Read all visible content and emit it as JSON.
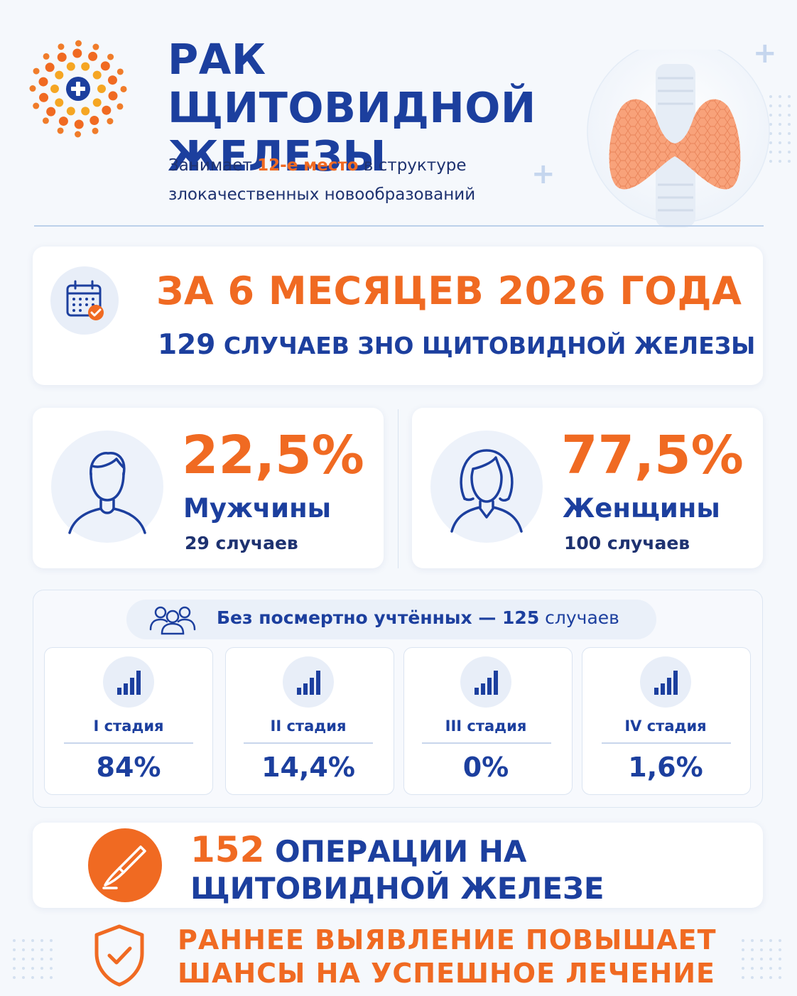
{
  "header": {
    "title_line1": "РАК ЩИТОВИДНОЙ",
    "title_line2": "ЖЕЛЕЗЫ",
    "subtitle_prefix": "Занимает ",
    "subtitle_accent": "12-е место",
    "subtitle_suffix": " в структуре",
    "subtitle_line2": "злокачественных новообразований"
  },
  "period": {
    "title": "ЗА 6 МЕСЯЦЕВ 2026 ГОДА",
    "cases_number": "129",
    "cases_text": " СЛУЧАЕВ ЗНО ЩИТОВИДНОЙ ЖЕЛЕЗЫ",
    "icon": "calendar-check-icon"
  },
  "gender": {
    "men": {
      "percent": "22,5%",
      "label": "Мужчины",
      "cases": "29 случаев",
      "icon": "man-avatar-icon"
    },
    "women": {
      "percent": "77,5%",
      "label": "Женщины",
      "cases": "100 случаев",
      "icon": "woman-avatar-icon"
    }
  },
  "stages": {
    "note_prefix": "Без посмертно учтённых — ",
    "note_number": "125",
    "note_suffix": " случаев",
    "items": [
      {
        "label": "I стадия",
        "value": "84%"
      },
      {
        "label": "II стадия",
        "value": "14,4%"
      },
      {
        "label": "III стадия",
        "value": "0%"
      },
      {
        "label": "IV стадия",
        "value": "1,6%"
      }
    ],
    "icon": "signal-bars-icon"
  },
  "operations": {
    "number": "152",
    "line1_text": " ОПЕРАЦИИ НА",
    "line2": "ЩИТОВИДНОЙ ЖЕЛЕЗЕ",
    "icon": "scalpel-icon"
  },
  "footer": {
    "line1": "РАННЕЕ ВЫЯВЛЕНИЕ ПОВЫШАЕТ",
    "line2": "ШАНСЫ НА УСПЕШНОЕ ЛЕЧЕНИЕ",
    "icon": "shield-check-icon"
  },
  "colors": {
    "navy": "#1c3f9e",
    "orange": "#f06a22",
    "background": "#f5f8fc"
  }
}
